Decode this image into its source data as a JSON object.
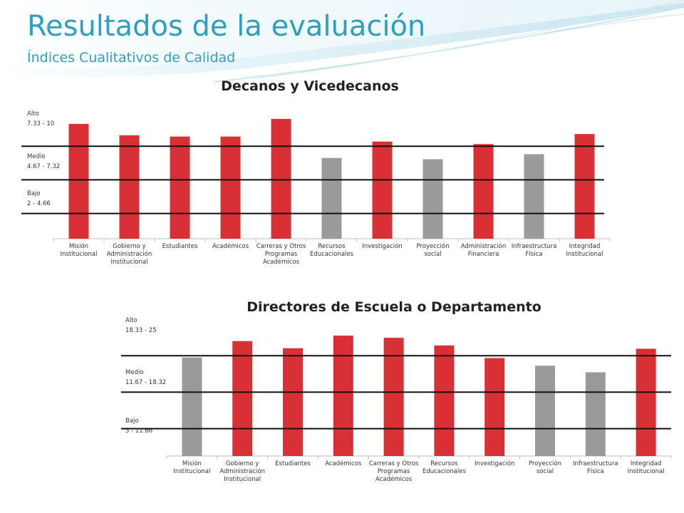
{
  "slide": {
    "title": "Resultados de la evaluación",
    "subtitle": "Índices Cualitativos de Calidad"
  },
  "colors": {
    "accent": "#2d9fbf",
    "bar_red": "#d93035",
    "bar_gray": "#9a9a9a",
    "threshold_line": "#111111"
  },
  "chart_data": [
    {
      "type": "bar",
      "title": "Decanos y Vicedecanos",
      "categories": [
        "Misión\nInstitucional",
        "Gobierno y\nAdministración\nInstitucional",
        "Estudiantes",
        "Académicos",
        "Carreras y Otros\nProgramas\nAcadémicos",
        "Recursos\nEducacionales",
        "Investigación",
        "Proyección\nsocial",
        "Administración\nFinanciera",
        "Infraestructura\nFísica",
        "Integridad\nInstitucional"
      ],
      "values": [
        9.1,
        8.2,
        8.1,
        8.1,
        9.5,
        6.4,
        7.7,
        6.3,
        7.5,
        6.7,
        8.3
      ],
      "bar_colors": [
        "red",
        "red",
        "red",
        "red",
        "red",
        "gray",
        "red",
        "gray",
        "red",
        "gray",
        "red"
      ],
      "ylim": [
        0,
        10
      ],
      "thresholds": [
        2,
        4.67,
        7.33
      ],
      "bands": [
        {
          "name": "Alto",
          "range": "7.33 - 10"
        },
        {
          "name": "Medio",
          "range": "4.67 - 7.32"
        },
        {
          "name": "Bajo",
          "range": "2 - 4.66"
        }
      ]
    },
    {
      "type": "bar",
      "title": "Directores de Escuela o Departamento",
      "categories": [
        "Misión\nInstitucional",
        "Gobierno y\nAdministración\nInstitucional",
        "Estudiantes",
        "Académicos",
        "Carreras y Otros\nProgramas\nAcadémicos",
        "Recursos\nEducacionales",
        "Investigación",
        "Proyección\nsocial",
        "Infraestructura\nFísica",
        "Integridad\nInstitucional"
      ],
      "values": [
        18.0,
        21.0,
        19.7,
        22.0,
        21.6,
        20.2,
        17.9,
        16.5,
        15.3,
        19.6
      ],
      "bar_colors": [
        "gray",
        "red",
        "red",
        "red",
        "red",
        "red",
        "red",
        "gray",
        "gray",
        "red"
      ],
      "ylim": [
        0,
        25
      ],
      "thresholds": [
        5,
        11.67,
        18.33
      ],
      "bands": [
        {
          "name": "Alto",
          "range": "18.33 - 25"
        },
        {
          "name": "Medio",
          "range": "11.67 - 18.32"
        },
        {
          "name": "Bajo",
          "range": "5 - 11.66"
        }
      ]
    }
  ]
}
